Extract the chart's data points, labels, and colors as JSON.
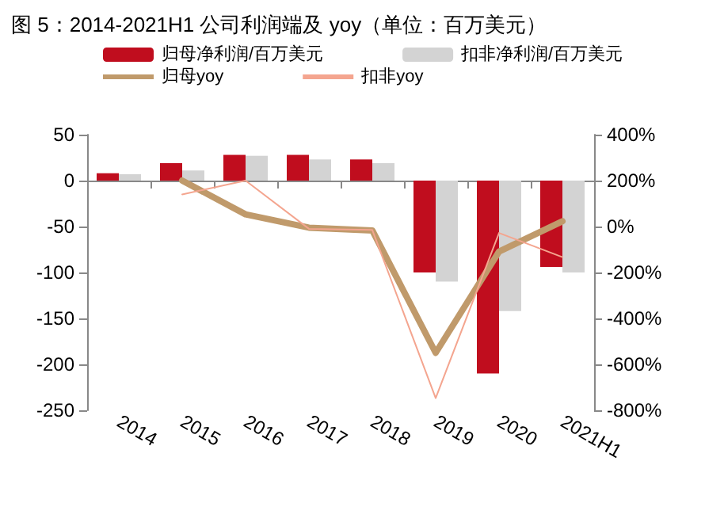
{
  "chart_data": {
    "type": "bar",
    "title": "图 5：2014-2021H1 公司利润端及 yoy（单位：百万美元）",
    "categories": [
      "2014",
      "2015",
      "2016",
      "2017",
      "2018",
      "2019",
      "2020",
      "2021H1"
    ],
    "series": [
      {
        "name": "归母净利润/百万美元",
        "color": "#c00d1e",
        "values": [
          8,
          19,
          28,
          28,
          23,
          -100,
          -210,
          -94
        ]
      },
      {
        "name": "扣非净利润/百万美元",
        "color": "#d3d3d3",
        "values": [
          7,
          11,
          27,
          23,
          19,
          -110,
          -142,
          -100
        ]
      },
      {
        "name": "归母yoy",
        "type": "line",
        "axis": "y2",
        "color": "#c09a6b",
        "values": [
          null,
          200,
          53,
          -5,
          -17,
          -550,
          -109,
          23
        ]
      },
      {
        "name": "扣非yoy",
        "type": "line",
        "axis": "y2",
        "color": "#f4a58f",
        "values": [
          null,
          140,
          200,
          -10,
          -15,
          -747,
          -28,
          -133
        ]
      }
    ],
    "ylim": [
      -250,
      50
    ],
    "yticks": [
      -250,
      -200,
      -150,
      -100,
      -50,
      0,
      50
    ],
    "y2lim": [
      -800,
      400
    ],
    "y2ticks": [
      {
        "value": -800,
        "label": "-800%"
      },
      {
        "value": -600,
        "label": "-600%"
      },
      {
        "value": -400,
        "label": "-400%"
      },
      {
        "value": -200,
        "label": "-200%"
      },
      {
        "value": 0,
        "label": "0%"
      },
      {
        "value": 200,
        "label": "200%"
      },
      {
        "value": 400,
        "label": "400%"
      }
    ],
    "legend": "top",
    "marker": "none",
    "line_style": "solid"
  }
}
